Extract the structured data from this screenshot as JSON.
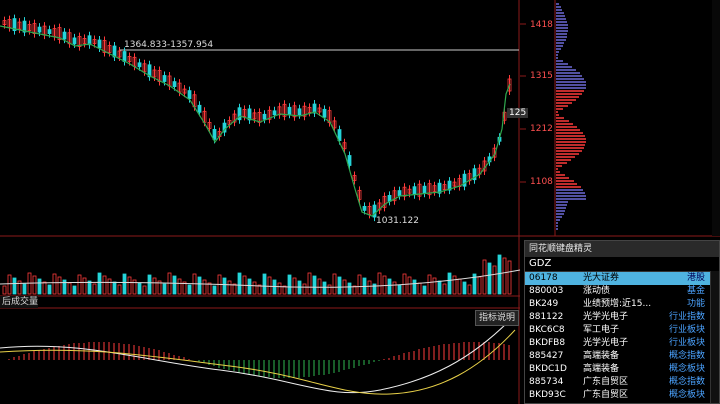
{
  "chart": {
    "hi_annotation": "1364.833-1357.954",
    "lo_annotation": "1031.122",
    "price_tick_label": "125",
    "axis_labels": [
      "1418",
      "1315",
      "1212",
      "1108"
    ]
  },
  "panels": {
    "tab_label": "后成交量",
    "indicator_button": "指标说明"
  },
  "popup": {
    "title": "同花顺键盘精灵",
    "input_value": "GDZ",
    "rows": [
      {
        "code": "06178",
        "name": "光大证券",
        "type": "港股",
        "selected": true
      },
      {
        "code": "880003",
        "name": "涨动债",
        "type": "基金"
      },
      {
        "code": "BK249",
        "name": "业绩预增:近15...",
        "type": "功能"
      },
      {
        "code": "881122",
        "name": "光学光电子",
        "type": "行业指数"
      },
      {
        "code": "BKC6C8",
        "name": "军工电子",
        "type": "行业板块"
      },
      {
        "code": "BKDFB8",
        "name": "光学光电子",
        "type": "行业板块"
      },
      {
        "code": "885427",
        "name": "高端装备",
        "type": "概念指数"
      },
      {
        "code": "BKDC1D",
        "name": "高端装备",
        "type": "概念板块"
      },
      {
        "code": "885734",
        "name": "广东自贸区",
        "type": "概念指数"
      },
      {
        "code": "BKD93C",
        "name": "广东自贸区",
        "type": "概念板块"
      }
    ]
  },
  "colors": {
    "up": "#ff3b3b",
    "down": "#25d4d8",
    "ma": "#2fa84f",
    "grid": "#8b1a1a"
  }
}
